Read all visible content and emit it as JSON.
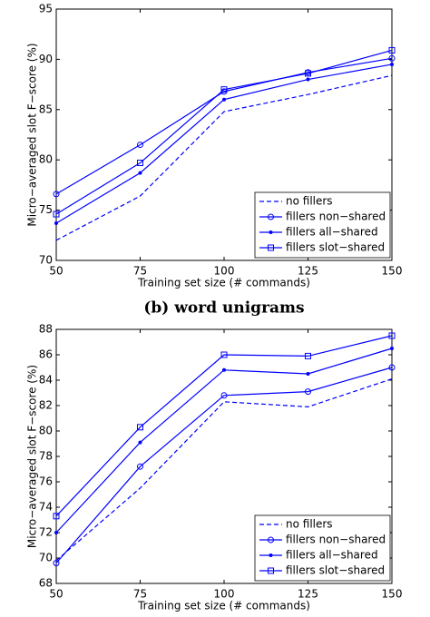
{
  "chart_data": [
    {
      "type": "line",
      "xlabel": "Training set size (# commands)",
      "ylabel": "Micro−averaged slot F−score (%)",
      "x": [
        50,
        75,
        100,
        125,
        150
      ],
      "xlim": [
        50,
        150
      ],
      "xticks": [
        50,
        75,
        100,
        125,
        150
      ],
      "ylim": [
        70,
        95
      ],
      "yticks": [
        70,
        75,
        80,
        85,
        90,
        95
      ],
      "legend": "lower right",
      "series": [
        {
          "name": "no fillers",
          "color": "#0000ff",
          "dash": true,
          "marker": "none",
          "values": [
            72.0,
            76.4,
            84.8,
            86.5,
            88.4
          ]
        },
        {
          "name": "fillers non−shared",
          "color": "#0000ff",
          "dash": false,
          "marker": "circle",
          "values": [
            76.6,
            81.5,
            86.8,
            88.7,
            90.1
          ]
        },
        {
          "name": "fillers all−shared",
          "color": "#0000ff",
          "dash": false,
          "marker": "dot",
          "values": [
            73.7,
            78.7,
            86.0,
            88.0,
            89.5
          ]
        },
        {
          "name": "fillers slot−shared",
          "color": "#0000ff",
          "dash": false,
          "marker": "square",
          "values": [
            74.6,
            79.7,
            87.0,
            88.6,
            90.9
          ]
        }
      ]
    },
    {
      "type": "line",
      "title": "(b) word unigrams",
      "xlabel": "Training set size (# commands)",
      "ylabel": "Micro−averaged slot F−score (%)",
      "x": [
        50,
        75,
        100,
        125,
        150
      ],
      "xlim": [
        50,
        150
      ],
      "xticks": [
        50,
        75,
        100,
        125,
        150
      ],
      "ylim": [
        68,
        88
      ],
      "yticks": [
        68,
        70,
        72,
        74,
        76,
        78,
        80,
        82,
        84,
        86,
        88
      ],
      "legend": "lower right",
      "series": [
        {
          "name": "no fillers",
          "color": "#0000ff",
          "dash": true,
          "marker": "none",
          "values": [
            69.8,
            75.5,
            82.3,
            81.9,
            84.1
          ]
        },
        {
          "name": "fillers non−shared",
          "color": "#0000ff",
          "dash": false,
          "marker": "circle",
          "values": [
            69.6,
            77.2,
            82.8,
            83.1,
            85.0
          ]
        },
        {
          "name": "fillers all−shared",
          "color": "#0000ff",
          "dash": false,
          "marker": "dot",
          "values": [
            72.0,
            79.1,
            84.8,
            84.5,
            86.5
          ]
        },
        {
          "name": "fillers slot−shared",
          "color": "#0000ff",
          "dash": false,
          "marker": "square",
          "values": [
            73.3,
            80.3,
            86.0,
            85.9,
            87.5
          ]
        }
      ]
    }
  ]
}
